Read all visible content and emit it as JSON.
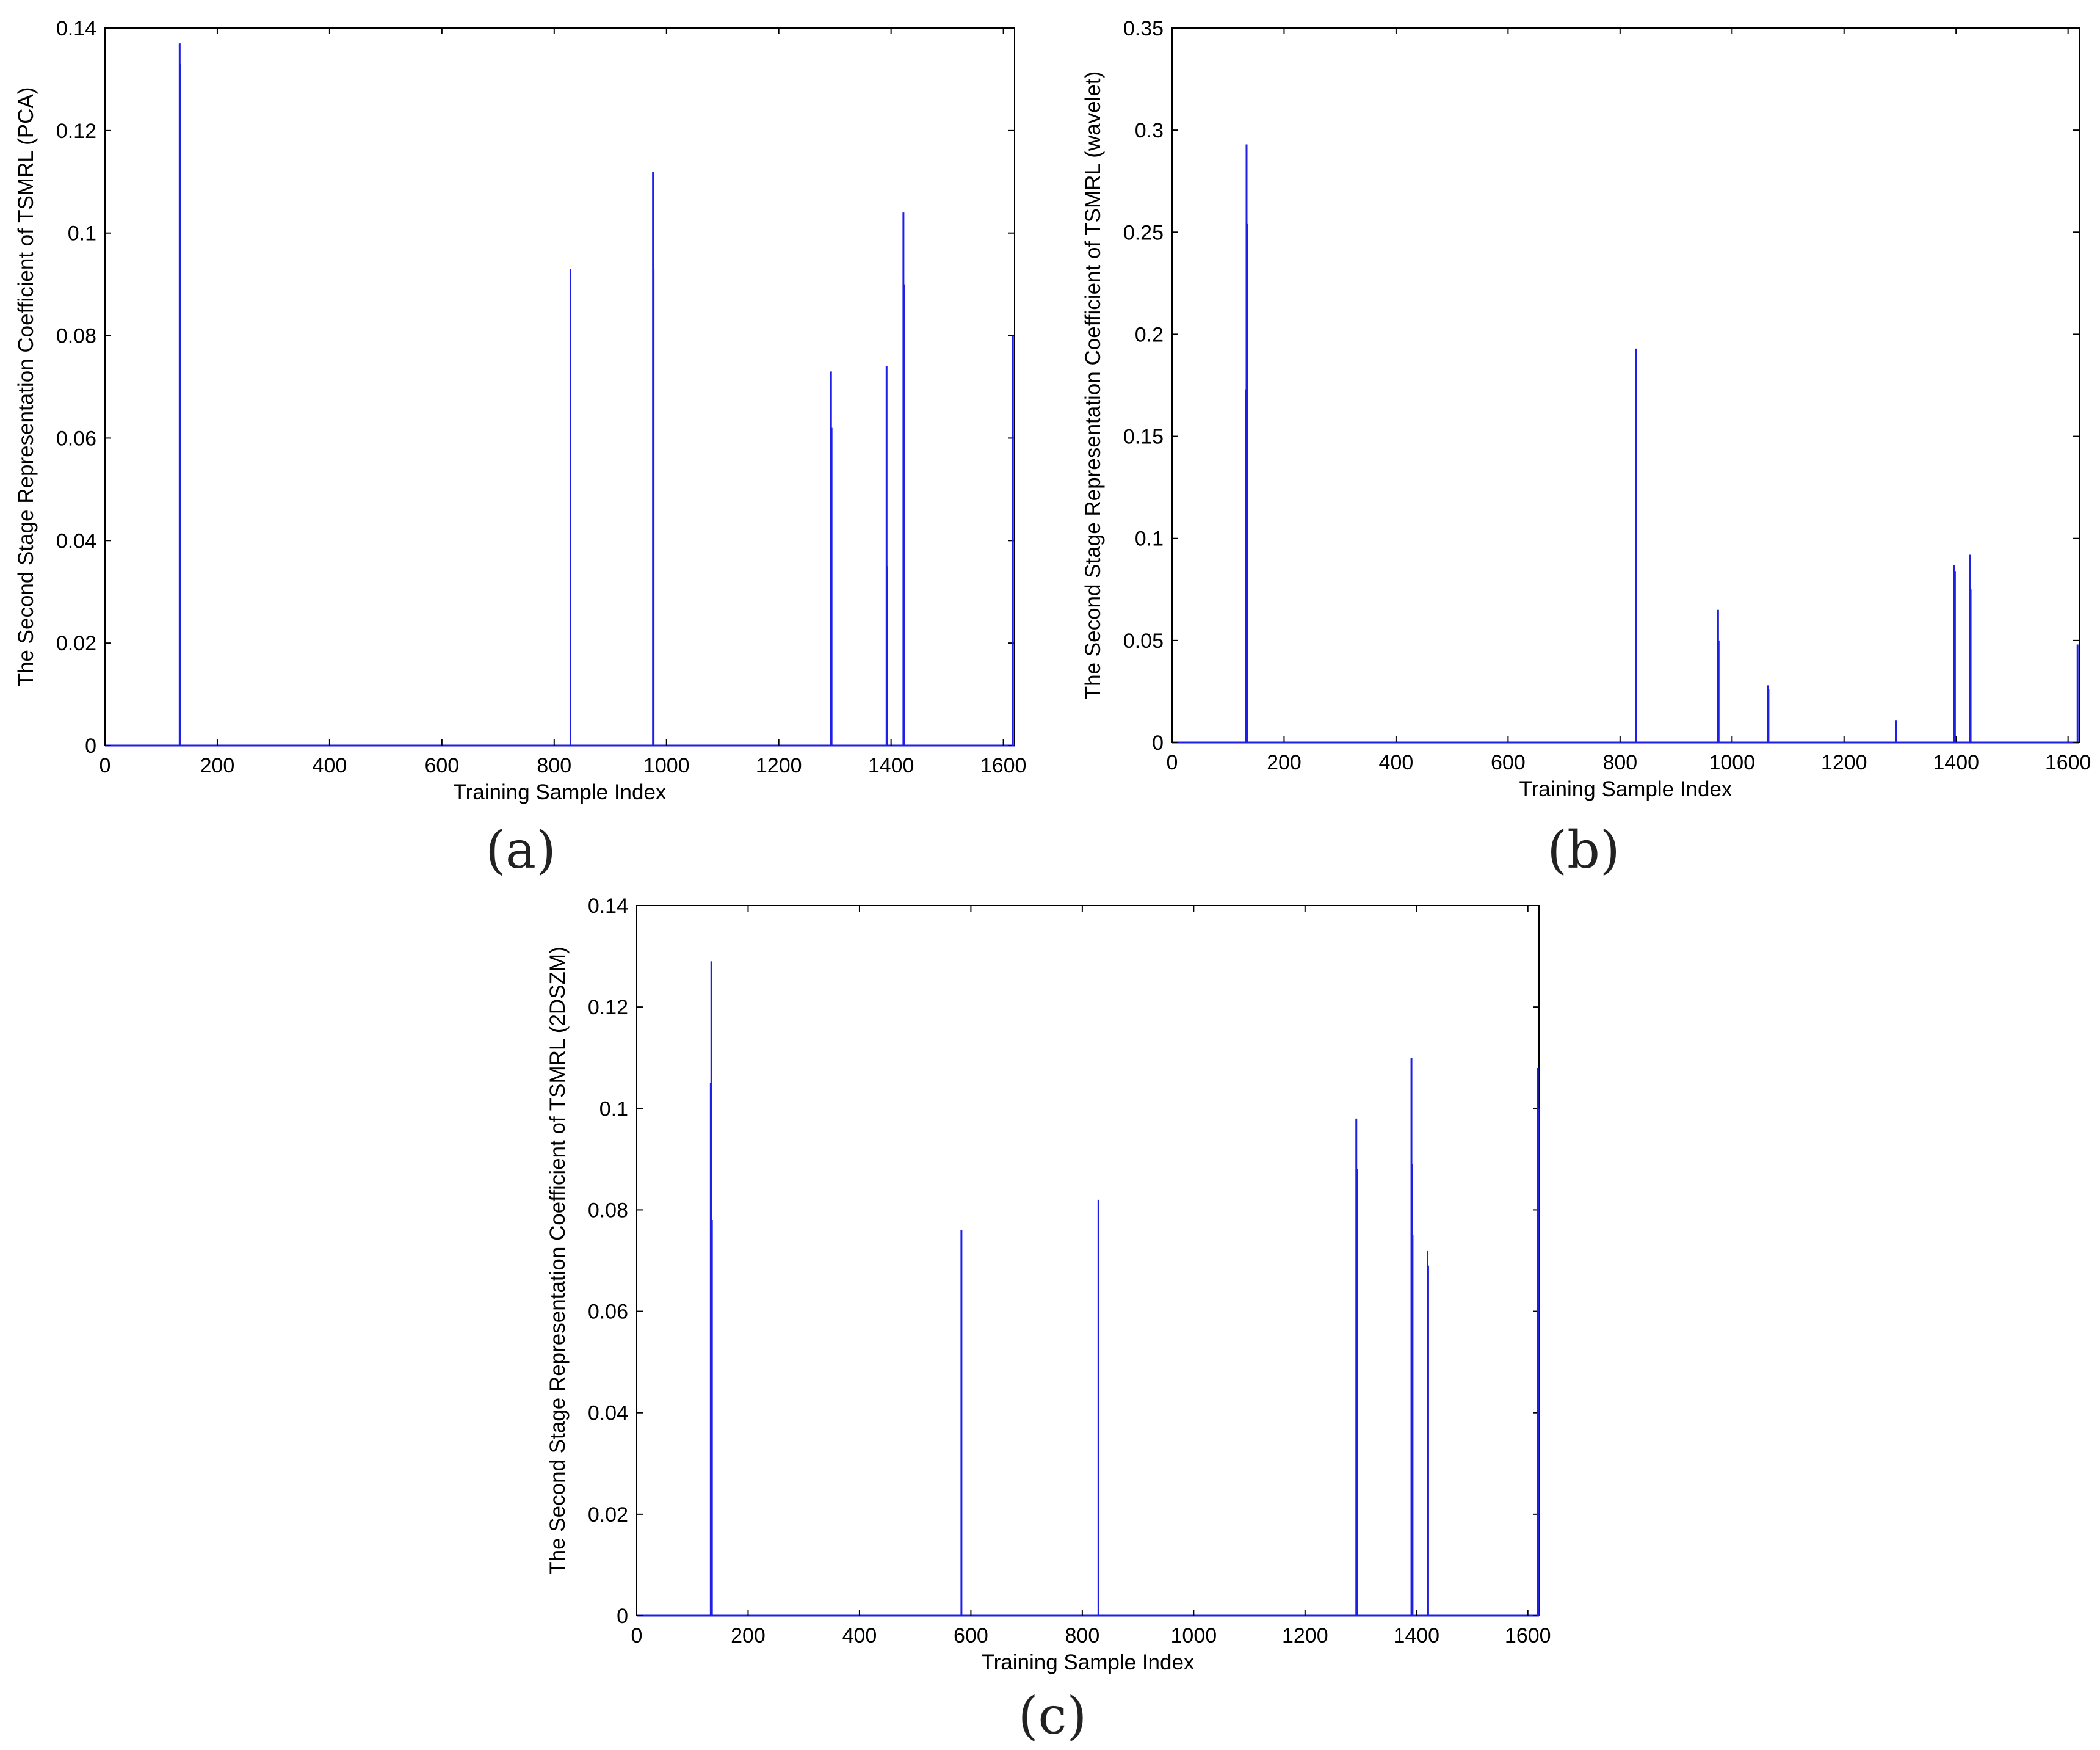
{
  "colors": {
    "series": "#1f1fe6",
    "axis": "#000000",
    "background": "#ffffff"
  },
  "charts": [
    {
      "panel": "(a)",
      "chart_data": {
        "type": "bar",
        "xlabel": "Training Sample Index",
        "ylabel": "The Second Stage Representation Coefficient of TSMRL (PCA)",
        "xlim": [
          0,
          1620
        ],
        "ylim": [
          0,
          0.14
        ],
        "xticks": [
          "0",
          "200",
          "400",
          "600",
          "800",
          "1000",
          "1200",
          "1400",
          "1600"
        ],
        "yticks": [
          "0",
          "0.02",
          "0.04",
          "0.06",
          "0.08",
          "0.1",
          "0.12",
          "0.14"
        ],
        "x": [
          133,
          134,
          829,
          976,
          977,
          1293,
          1294,
          1392,
          1393,
          1422,
          1423,
          1617
        ],
        "values": [
          0.137,
          0.133,
          0.093,
          0.112,
          0.093,
          0.073,
          0.062,
          0.074,
          0.035,
          0.104,
          0.09,
          0.08
        ]
      }
    },
    {
      "panel": "(b)",
      "chart_data": {
        "type": "bar",
        "xlabel": "Training Sample Index",
        "ylabel": "The Second Stage Representation Coefficient of TSMRL (wavelet)",
        "xlim": [
          0,
          1620
        ],
        "ylim": [
          0,
          0.35
        ],
        "xticks": [
          "0",
          "200",
          "400",
          "600",
          "800",
          "1000",
          "1200",
          "1400",
          "1600"
        ],
        "yticks": [
          "0",
          "0.05",
          "0.1",
          "0.15",
          "0.2",
          "0.25",
          "0.3",
          "0.35"
        ],
        "x": [
          132,
          133,
          134,
          829,
          975,
          976,
          1064,
          1065,
          1293,
          1397,
          1398,
          1425,
          1426,
          1617
        ],
        "values": [
          0.173,
          0.293,
          0.254,
          0.193,
          0.065,
          0.05,
          0.028,
          0.026,
          0.011,
          0.087,
          0.084,
          0.092,
          0.075,
          0.048
        ]
      }
    },
    {
      "panel": "(c)",
      "chart_data": {
        "type": "bar",
        "xlabel": "Training Sample Index",
        "ylabel": "The Second Stage Representation Coefficient of TSMRL (2DSZM)",
        "xlim": [
          0,
          1620
        ],
        "ylim": [
          0,
          0.14
        ],
        "xticks": [
          "0",
          "200",
          "400",
          "600",
          "800",
          "1000",
          "1200",
          "1400",
          "1600"
        ],
        "yticks": [
          "0",
          "0.02",
          "0.04",
          "0.06",
          "0.08",
          "0.1",
          "0.12",
          "0.14"
        ],
        "x": [
          133,
          134,
          135,
          583,
          829,
          1292,
          1293,
          1391,
          1392,
          1393,
          1420,
          1421,
          1618,
          1619
        ],
        "values": [
          0.105,
          0.129,
          0.078,
          0.076,
          0.082,
          0.098,
          0.088,
          0.11,
          0.089,
          0.075,
          0.072,
          0.069,
          0.108,
          0.1
        ]
      }
    }
  ]
}
